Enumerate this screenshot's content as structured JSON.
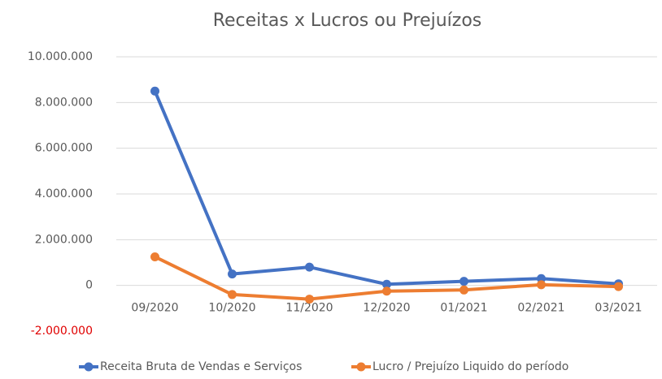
{
  "chart_data": {
    "type": "line",
    "title": "Receitas x Lucros ou Prejuízos",
    "categories": [
      "09/2020",
      "10/2020",
      "11/2020",
      "12/2020",
      "01/2021",
      "02/2021",
      "03/2021"
    ],
    "series": [
      {
        "name": "Receita Bruta de Vendas e Serviços",
        "color": "#4472c4",
        "values": [
          8500000,
          500000,
          800000,
          50000,
          180000,
          300000,
          70000
        ]
      },
      {
        "name": "Lucro / Prejuízo Liquido do período",
        "color": "#ed7d31",
        "values": [
          1250000,
          -400000,
          -600000,
          -250000,
          -200000,
          30000,
          -50000
        ]
      }
    ],
    "ylim": [
      -2000000,
      10000000
    ],
    "yticks": [
      {
        "value": -2000000,
        "label": "-2.000.000"
      },
      0,
      {
        "value": 2000000,
        "label": "2.000.000"
      },
      {
        "value": 4000000,
        "label": "4.000.000"
      },
      {
        "value": 6000000,
        "label": "6.000.000"
      },
      {
        "value": 8000000,
        "label": "8.000.000"
      },
      {
        "value": 10000000,
        "label": "10.000.000"
      }
    ],
    "grid": true,
    "legend": "bottom"
  }
}
